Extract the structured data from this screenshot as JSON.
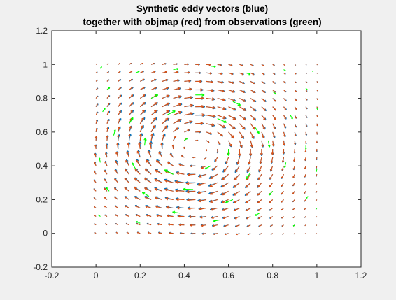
{
  "chart_data": {
    "type": "quiver",
    "title_lines": [
      "Synthetic eddy vectors (blue)",
      "together with objmap (red) from observations (green)"
    ],
    "xlabel": "",
    "ylabel": "",
    "xlim": [
      -0.2,
      1.2
    ],
    "ylim": [
      -0.2,
      1.2
    ],
    "xticks": [
      -0.2,
      0,
      0.2,
      0.4,
      0.6,
      0.8,
      1,
      1.2
    ],
    "yticks": [
      -0.2,
      0,
      0.2,
      0.4,
      0.6,
      0.8,
      1,
      1.2
    ],
    "xtick_labels": [
      "-0.2",
      "0",
      "0.2",
      "0.4",
      "0.6",
      "0.8",
      "1",
      "1.2"
    ],
    "ytick_labels": [
      "-0.2",
      "0",
      "0.2",
      "0.4",
      "0.6",
      "0.8",
      "1",
      "1.2"
    ],
    "grid": false,
    "field": {
      "kind": "clockwise eddy",
      "center": [
        0.45,
        0.5
      ],
      "radius": 0.3,
      "grid_range": [
        0,
        1
      ],
      "grid_count": 21
    },
    "series": [
      {
        "color": "#0072bd"
      },
      {
        "color": "#d95319"
      },
      {
        "color": "#00ff00",
        "points": [
          [
            0.02,
            0.98
          ],
          [
            0.18,
            0.95
          ],
          [
            0.35,
            0.97
          ],
          [
            0.52,
            0.99
          ],
          [
            0.68,
            0.95
          ],
          [
            0.85,
            0.97
          ],
          [
            0.98,
            0.96
          ],
          [
            0.05,
            0.85
          ],
          [
            0.25,
            0.8
          ],
          [
            0.45,
            0.82
          ],
          [
            0.62,
            0.78
          ],
          [
            0.8,
            0.84
          ],
          [
            0.95,
            0.86
          ],
          [
            0.03,
            0.72
          ],
          [
            0.15,
            0.65
          ],
          [
            0.32,
            0.7
          ],
          [
            0.55,
            0.68
          ],
          [
            0.72,
            0.63
          ],
          [
            0.88,
            0.7
          ],
          [
            1.0,
            0.74
          ],
          [
            0.08,
            0.58
          ],
          [
            0.22,
            0.52
          ],
          [
            0.4,
            0.55
          ],
          [
            0.6,
            0.5
          ],
          [
            0.78,
            0.55
          ],
          [
            0.95,
            0.52
          ],
          [
            0.02,
            0.42
          ],
          [
            0.18,
            0.38
          ],
          [
            0.35,
            0.35
          ],
          [
            0.52,
            0.4
          ],
          [
            0.7,
            0.36
          ],
          [
            0.86,
            0.42
          ],
          [
            1.0,
            0.38
          ],
          [
            0.06,
            0.25
          ],
          [
            0.24,
            0.22
          ],
          [
            0.44,
            0.26
          ],
          [
            0.62,
            0.2
          ],
          [
            0.8,
            0.25
          ],
          [
            0.96,
            0.22
          ],
          [
            0.02,
            0.1
          ],
          [
            0.2,
            0.06
          ],
          [
            0.38,
            0.12
          ],
          [
            0.56,
            0.08
          ],
          [
            0.74,
            0.12
          ],
          [
            0.9,
            0.05
          ],
          [
            1.0,
            0.15
          ]
        ]
      }
    ]
  }
}
